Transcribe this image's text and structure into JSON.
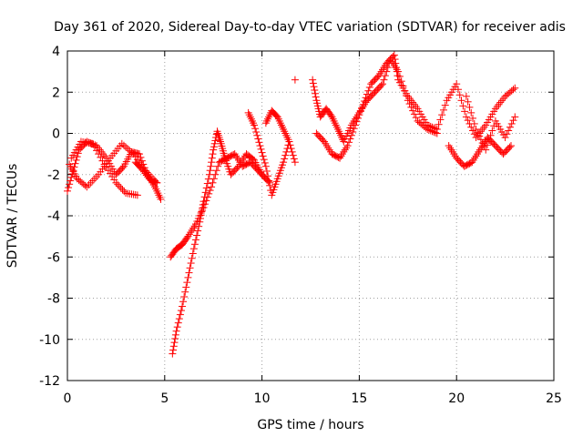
{
  "chart_data": {
    "type": "scatter",
    "title": "Day 361 of 2020, Sidereal Day-to-day VTEC variation (SDTVAR) for receiver adis",
    "xlabel": "GPS time / hours",
    "ylabel": "SDTVAR / TECUs",
    "xlim": [
      0,
      25
    ],
    "ylim": [
      -12,
      4
    ],
    "xticks": [
      "0",
      "5",
      "10",
      "15",
      "20",
      "25"
    ],
    "yticks": [
      "4",
      "2",
      "0",
      "-2",
      "-4",
      "-6",
      "-8",
      "-10",
      "-12"
    ],
    "grid": true,
    "marker": "+",
    "color": "#ff0000",
    "series": [
      {
        "name": "SDTVAR",
        "x": [
          0.0,
          0.3,
          0.6,
          1.0,
          1.5,
          2.0,
          2.5,
          2.9,
          3.3,
          3.7,
          4.1,
          4.5,
          4.8,
          0.1,
          0.5,
          1.0,
          1.6,
          2.2,
          2.8,
          3.4,
          4.0,
          4.6,
          0.2,
          0.7,
          1.3,
          1.9,
          2.5,
          3.0,
          3.6,
          3.5,
          3.8,
          4.2,
          4.6,
          5.4,
          5.6,
          5.9,
          6.2,
          6.5,
          6.8,
          7.0,
          7.3,
          7.5,
          7.7,
          7.9,
          8.1,
          8.4,
          8.8,
          9.2,
          9.6,
          10.0,
          10.4,
          5.3,
          5.6,
          5.9,
          6.2,
          6.6,
          7.0,
          7.4,
          7.8,
          8.2,
          8.6,
          9.0,
          9.4,
          9.8,
          10.2,
          9.3,
          9.6,
          9.9,
          10.2,
          10.5,
          10.8,
          11.1,
          11.4,
          11.7,
          10.2,
          10.5,
          10.8,
          11.1,
          11.4,
          11.7,
          12.6,
          12.8,
          13.0,
          13.3,
          13.6,
          13.9,
          14.2,
          14.6,
          15.0,
          15.4,
          15.8,
          16.2,
          16.6,
          17.0,
          17.5,
          18.0,
          18.5,
          19.0,
          12.8,
          13.2,
          13.6,
          14.0,
          14.4,
          14.8,
          15.2,
          15.6,
          16.0,
          16.4,
          16.8,
          17.0,
          17.5,
          18.0,
          18.5,
          19.0,
          19.5,
          20.0,
          20.5,
          21.0,
          21.5,
          22.0,
          22.5,
          23.0,
          19.6,
          20.0,
          20.4,
          20.8,
          21.2,
          21.6,
          22.0,
          22.4,
          22.8,
          20.5,
          21.0,
          21.5,
          22.0,
          22.5,
          23.0
        ],
        "y": [
          -2.8,
          -1.8,
          -0.8,
          -0.4,
          -0.6,
          -1.2,
          -2.0,
          -1.6,
          -0.9,
          -1.0,
          -2.0,
          -2.6,
          -3.2,
          -1.5,
          -2.2,
          -2.6,
          -2.0,
          -1.2,
          -0.5,
          -1.0,
          -1.8,
          -2.4,
          -1.2,
          -0.4,
          -0.5,
          -1.5,
          -2.4,
          -2.9,
          -3.0,
          -1.4,
          -1.7,
          -2.2,
          -2.4,
          -10.7,
          -9.6,
          -8.4,
          -7.0,
          -5.6,
          -4.3,
          -3.3,
          -2.0,
          -0.8,
          0.1,
          -0.5,
          -1.2,
          -2.0,
          -1.6,
          -1.0,
          -1.3,
          -2.0,
          -2.4,
          -6.0,
          -5.6,
          -5.4,
          -5.0,
          -4.4,
          -3.6,
          -2.6,
          -1.4,
          -1.2,
          -1.0,
          -1.6,
          -1.4,
          -1.8,
          -2.2,
          1.0,
          0.4,
          -0.6,
          -1.6,
          -3.0,
          -2.2,
          -1.4,
          -0.4,
          2.6,
          0.5,
          1.1,
          0.8,
          0.2,
          -0.4,
          -1.4,
          2.6,
          1.6,
          0.8,
          1.2,
          0.8,
          0.2,
          -0.4,
          0.4,
          1.0,
          1.6,
          2.0,
          2.4,
          3.6,
          3.0,
          1.6,
          0.6,
          0.2,
          0.0,
          0.0,
          -0.4,
          -1.0,
          -1.2,
          -0.6,
          0.4,
          1.4,
          2.4,
          2.8,
          3.4,
          3.8,
          2.6,
          1.8,
          1.2,
          0.4,
          0.2,
          1.6,
          2.4,
          0.8,
          -0.2,
          0.4,
          1.2,
          1.8,
          2.2,
          -0.6,
          -1.2,
          -1.6,
          -1.4,
          -0.8,
          -0.2,
          -0.6,
          -1.0,
          -0.6,
          1.8,
          0.2,
          -0.8,
          0.6,
          -0.2,
          0.8
        ]
      }
    ]
  }
}
